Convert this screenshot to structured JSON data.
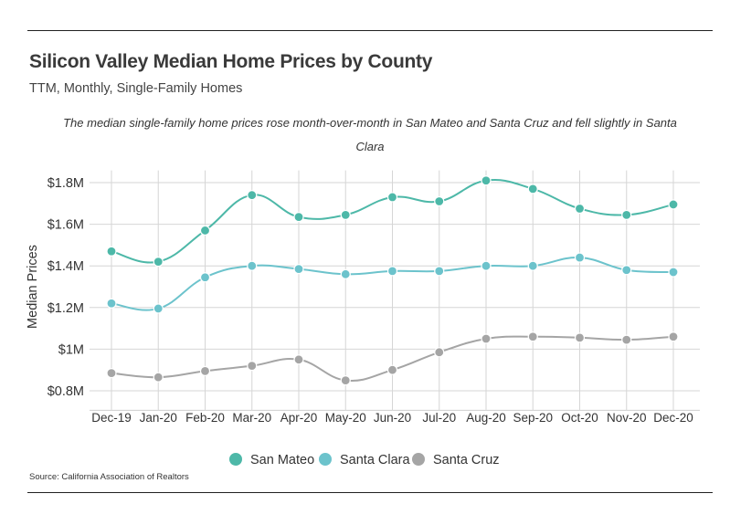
{
  "header": {
    "title": "Silicon Valley Median Home Prices by County",
    "subtitle": "TTM, Monthly, Single-Family Homes",
    "caption": "The median single-family home prices rose month-over-month in San Mateo and Santa Cruz and fell slightly in Santa Clara"
  },
  "footer": {
    "source": "Source:  California Association of Realtors"
  },
  "chart_data": {
    "type": "line",
    "title": "Silicon Valley Median Home Prices by County",
    "subtitle": "TTM, Monthly, Single-Family Homes",
    "xlabel": "",
    "ylabel": "Median Prices",
    "categories": [
      "Dec-19",
      "Jan-20",
      "Feb-20",
      "Mar-20",
      "Apr-20",
      "May-20",
      "Jun-20",
      "Jul-20",
      "Aug-20",
      "Sep-20",
      "Oct-20",
      "Nov-20",
      "Dec-20"
    ],
    "ylim": [
      0.75,
      1.85
    ],
    "yticks": [
      0.8,
      1.0,
      1.2,
      1.4,
      1.6,
      1.8
    ],
    "ytick_labels": [
      "$0.8M",
      "$1M",
      "$1.2M",
      "$1.4M",
      "$1.6M",
      "$1.8M"
    ],
    "grid": true,
    "legend_position": "bottom-center",
    "series": [
      {
        "name": "San Mateo",
        "color": "#4db8a8",
        "values": [
          1.47,
          1.42,
          1.57,
          1.74,
          1.635,
          1.645,
          1.73,
          1.71,
          1.81,
          1.77,
          1.675,
          1.645,
          1.695
        ]
      },
      {
        "name": "Santa Clara",
        "color": "#6cc3cc",
        "values": [
          1.22,
          1.195,
          1.345,
          1.4,
          1.385,
          1.36,
          1.375,
          1.375,
          1.4,
          1.4,
          1.44,
          1.38,
          1.37
        ]
      },
      {
        "name": "Santa Cruz",
        "color": "#a5a5a5",
        "values": [
          0.885,
          0.865,
          0.895,
          0.92,
          0.95,
          0.85,
          0.9,
          0.985,
          1.05,
          1.06,
          1.055,
          1.045,
          1.06
        ]
      }
    ]
  }
}
